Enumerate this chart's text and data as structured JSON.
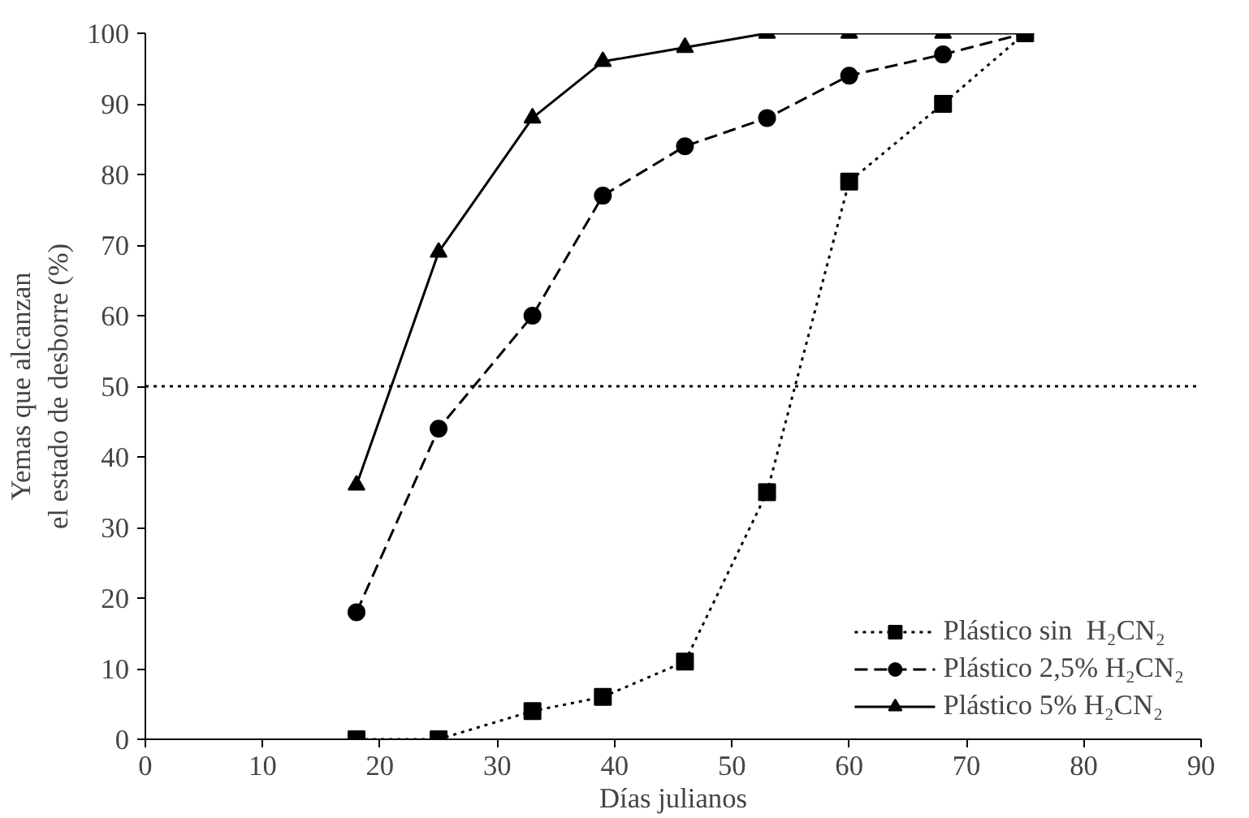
{
  "chart_data": {
    "type": "line",
    "xlabel": "Días julianos",
    "ylabel": "Yemas que alcanzan\nel estado de desborre (%)",
    "xlim": [
      0,
      90
    ],
    "xticks": [
      0,
      10,
      20,
      30,
      40,
      50,
      60,
      70,
      80,
      90
    ],
    "ylim": [
      0,
      100
    ],
    "yticks": [
      0,
      10,
      20,
      30,
      40,
      50,
      60,
      70,
      80,
      90,
      100
    ],
    "grid": false,
    "legend": "bottom right",
    "ref_lines": [
      {
        "axis": "y",
        "value": 50,
        "color": "#000000",
        "line_style": "dotted"
      }
    ],
    "series": [
      {
        "name": "Plástico sin  H₂CN₂",
        "color": "#000000",
        "marker": "square",
        "line_style": "dotted",
        "x": [
          18,
          25,
          33,
          39,
          46,
          53,
          60,
          68,
          75
        ],
        "values": [
          0,
          0,
          4,
          6,
          11,
          35,
          79,
          90,
          100
        ]
      },
      {
        "name": "Plástico 2,5% H₂CN₂",
        "color": "#000000",
        "marker": "circle",
        "line_style": "dashed",
        "x": [
          18,
          25,
          33,
          39,
          46,
          53,
          60,
          68,
          75
        ],
        "values": [
          18,
          44,
          60,
          77,
          84,
          88,
          94,
          97,
          100
        ]
      },
      {
        "name": "Plástico 5% H₂CN₂",
        "color": "#000000",
        "marker": "triangle",
        "line_style": "solid",
        "x": [
          18,
          25,
          33,
          39,
          46,
          53,
          60,
          68,
          75
        ],
        "values": [
          36,
          69,
          88,
          96,
          98,
          100,
          100,
          100,
          100
        ]
      }
    ]
  }
}
